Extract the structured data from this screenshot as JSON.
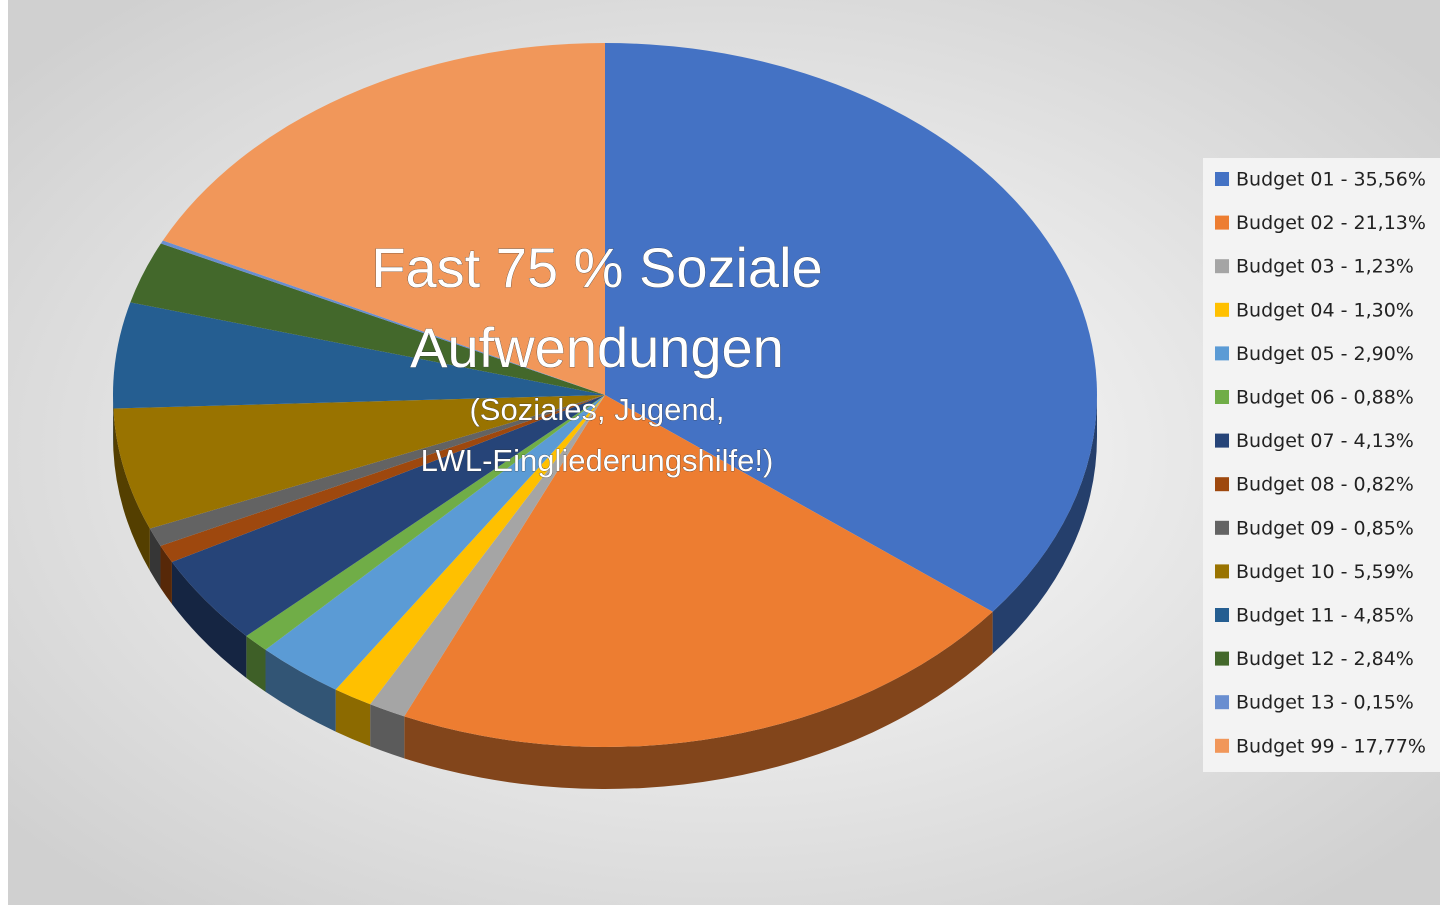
{
  "chart_data": {
    "type": "pie3d",
    "categories": [
      "Budget 01 -  35,56%",
      "Budget 02 -  21,13%",
      "Budget 03 -  1,23%",
      "Budget 04 -  1,30%",
      "Budget 05 -  2,90%",
      "Budget 06 -  0,88%",
      "Budget 07 -  4,13%",
      "Budget 08 -  0,82%",
      "Budget 09 -  0,85%",
      "Budget 10 -  5,59%",
      "Budget 11 -  4,85%",
      "Budget 12 -  2,84%",
      "Budget 13 -  0,15%",
      "Budget 99 -  17,77%"
    ],
    "values": [
      35.56,
      21.13,
      1.23,
      1.3,
      2.9,
      0.88,
      4.13,
      0.82,
      0.85,
      5.59,
      4.85,
      2.84,
      0.15,
      17.77
    ],
    "colors": [
      "#4472c4",
      "#ed7d31",
      "#a5a5a5",
      "#ffc000",
      "#5b9bd5",
      "#70ad47",
      "#264478",
      "#9e480e",
      "#636363",
      "#997300",
      "#255e91",
      "#43682b",
      "#698ed0",
      "#f1975a"
    ],
    "legend": "right",
    "annotation": [
      "Fast 75 % Soziale",
      "Aufwendungen",
      "(Soziales, Jugend,",
      "LWL-Eingliederungshilfe!)"
    ]
  }
}
